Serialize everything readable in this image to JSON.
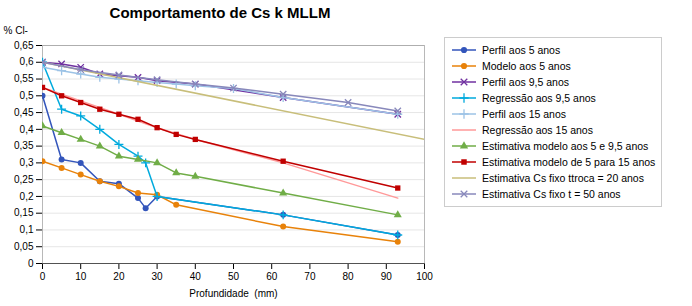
{
  "chart_data": {
    "type": "line",
    "title": "Comportamento de Cs k MLLM",
    "xlabel": "Profundidade  (mm)",
    "ylabel": "% Cl-",
    "xlim": [
      0,
      100
    ],
    "ylim": [
      0,
      0.65
    ],
    "xticks": [
      0,
      10,
      20,
      30,
      40,
      50,
      60,
      70,
      80,
      90,
      100
    ],
    "yticks": [
      0,
      {
        "value": 0.05,
        "label": "0,05"
      },
      {
        "value": 0.1,
        "label": "0,1"
      },
      {
        "value": 0.15,
        "label": "0,15"
      },
      {
        "value": 0.2,
        "label": "0,2"
      },
      {
        "value": 0.25,
        "label": "0,25"
      },
      {
        "value": 0.3,
        "label": "0,3"
      },
      {
        "value": 0.35,
        "label": "0,35"
      },
      {
        "value": 0.4,
        "label": "0,4"
      },
      {
        "value": 0.45,
        "label": "0,45"
      },
      {
        "value": 0.5,
        "label": "0,5"
      },
      {
        "value": 0.55,
        "label": "0,55"
      },
      {
        "value": 0.6,
        "label": "0,6"
      },
      {
        "value": 0.65,
        "label": "0,65"
      }
    ],
    "grid": "y",
    "legend": "right",
    "series": [
      {
        "name": "Perfil aos 5 anos",
        "color": "#3355BB",
        "marker": "circle",
        "line_style": "solid",
        "x": [
          0,
          5,
          10,
          15,
          20,
          25,
          27,
          30,
          63,
          93
        ],
        "values": [
          0.5,
          0.31,
          0.3,
          0.245,
          0.238,
          0.195,
          0.165,
          0.2,
          0.145,
          0.085
        ]
      },
      {
        "name": "Modelo aos 5 anos",
        "color": "#E8820A",
        "marker": "circle",
        "line_style": "solid",
        "x": [
          0,
          5,
          10,
          15,
          20,
          25,
          30,
          35,
          63,
          93
        ],
        "values": [
          0.305,
          0.285,
          0.265,
          0.245,
          0.23,
          0.21,
          0.205,
          0.175,
          0.11,
          0.065
        ]
      },
      {
        "name": "Perfil aos 9,5 anos",
        "color": "#7030A0",
        "marker": "times",
        "line_style": "solid",
        "x": [
          0,
          5,
          10,
          15,
          20,
          25,
          30,
          40,
          63,
          93
        ],
        "values": [
          0.6,
          0.595,
          0.585,
          0.565,
          0.56,
          0.555,
          0.545,
          0.535,
          0.495,
          0.445
        ]
      },
      {
        "name": "Regressão aos 9,5 anos",
        "color": "#00AADD",
        "marker": "plus",
        "line_style": "solid",
        "x": [
          0,
          5,
          10,
          15,
          20,
          25,
          27,
          30,
          63,
          93
        ],
        "values": [
          0.6,
          0.46,
          0.44,
          0.4,
          0.355,
          0.32,
          0.3,
          0.2,
          0.145,
          0.085
        ]
      },
      {
        "name": "Perfil aos 15 anos",
        "color": "#9DC3E6",
        "marker": "plus",
        "line_style": "solid",
        "x": [
          0,
          5,
          10,
          15,
          20,
          25,
          30,
          35,
          40,
          50,
          63,
          93
        ],
        "values": [
          0.585,
          0.575,
          0.565,
          0.555,
          0.55,
          0.545,
          0.54,
          0.535,
          0.53,
          0.522,
          0.495,
          0.445
        ]
      },
      {
        "name": "Regressão aos 15 anos",
        "color": "#FF9999",
        "marker": "none",
        "line_style": "solid",
        "x": [
          0,
          10,
          20,
          30,
          40,
          63,
          93
        ],
        "values": [
          0.525,
          0.485,
          0.445,
          0.405,
          0.37,
          0.3,
          0.195
        ]
      },
      {
        "name": "Estimativa modelo aos 5 e 9,5 anos",
        "color": "#70AD47",
        "marker": "triangle",
        "line_style": "solid",
        "x": [
          0,
          5,
          10,
          15,
          20,
          25,
          30,
          35,
          40,
          63,
          93
        ],
        "values": [
          0.41,
          0.39,
          0.37,
          0.35,
          0.32,
          0.31,
          0.3,
          0.27,
          0.26,
          0.21,
          0.145
        ]
      },
      {
        "name": "Estimativa modelo de 5 para 15 anos",
        "color": "#C00000",
        "marker": "square",
        "line_style": "solid",
        "x": [
          0,
          5,
          10,
          15,
          20,
          25,
          30,
          35,
          40,
          63,
          93
        ],
        "values": [
          0.525,
          0.5,
          0.48,
          0.46,
          0.445,
          0.43,
          0.405,
          0.385,
          0.37,
          0.305,
          0.225
        ]
      },
      {
        "name": "Estimativa Cs fixo ttroca = 20 anos",
        "color": "#C8BE7A",
        "marker": "none",
        "line_style": "solid",
        "x": [
          0,
          100
        ],
        "values": [
          0.6,
          0.37
        ]
      },
      {
        "name": "Estimativa Cs fixo t = 50 anos",
        "color": "#8888BB",
        "marker": "times",
        "line_style": "solid",
        "x": [
          0,
          10,
          20,
          30,
          40,
          50,
          63,
          80,
          93
        ],
        "values": [
          0.6,
          0.578,
          0.562,
          0.548,
          0.535,
          0.523,
          0.505,
          0.48,
          0.455
        ]
      }
    ]
  }
}
